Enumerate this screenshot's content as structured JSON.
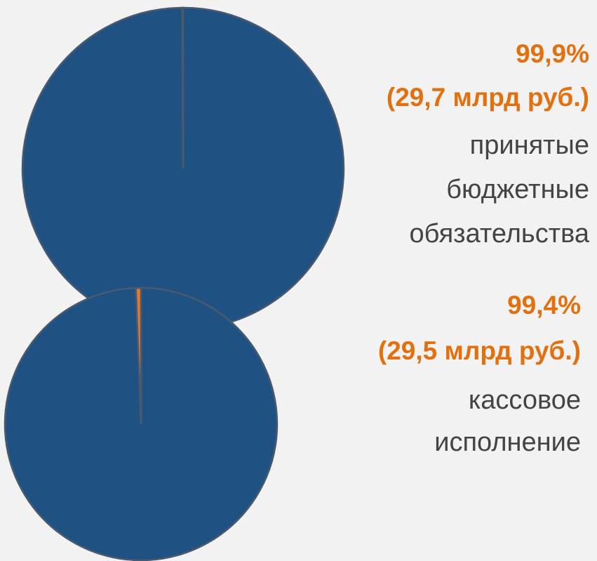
{
  "chart_data": [
    {
      "type": "pie",
      "values": [
        99.9,
        0.1
      ],
      "value_labels": [
        "99,9%",
        null
      ],
      "colors": [
        "#1f5283",
        "#e8772e"
      ],
      "amount": "(29,7 млрд руб.)",
      "description": [
        "принятые",
        "бюджетные",
        "обязательства"
      ]
    },
    {
      "type": "pie",
      "values": [
        99.4,
        0.6
      ],
      "value_labels": [
        "99,4%",
        null
      ],
      "colors": [
        "#1f5283",
        "#e8772e"
      ],
      "amount": "(29,5 млрд руб.)",
      "description": [
        "кассовое",
        "исполнение"
      ]
    }
  ]
}
